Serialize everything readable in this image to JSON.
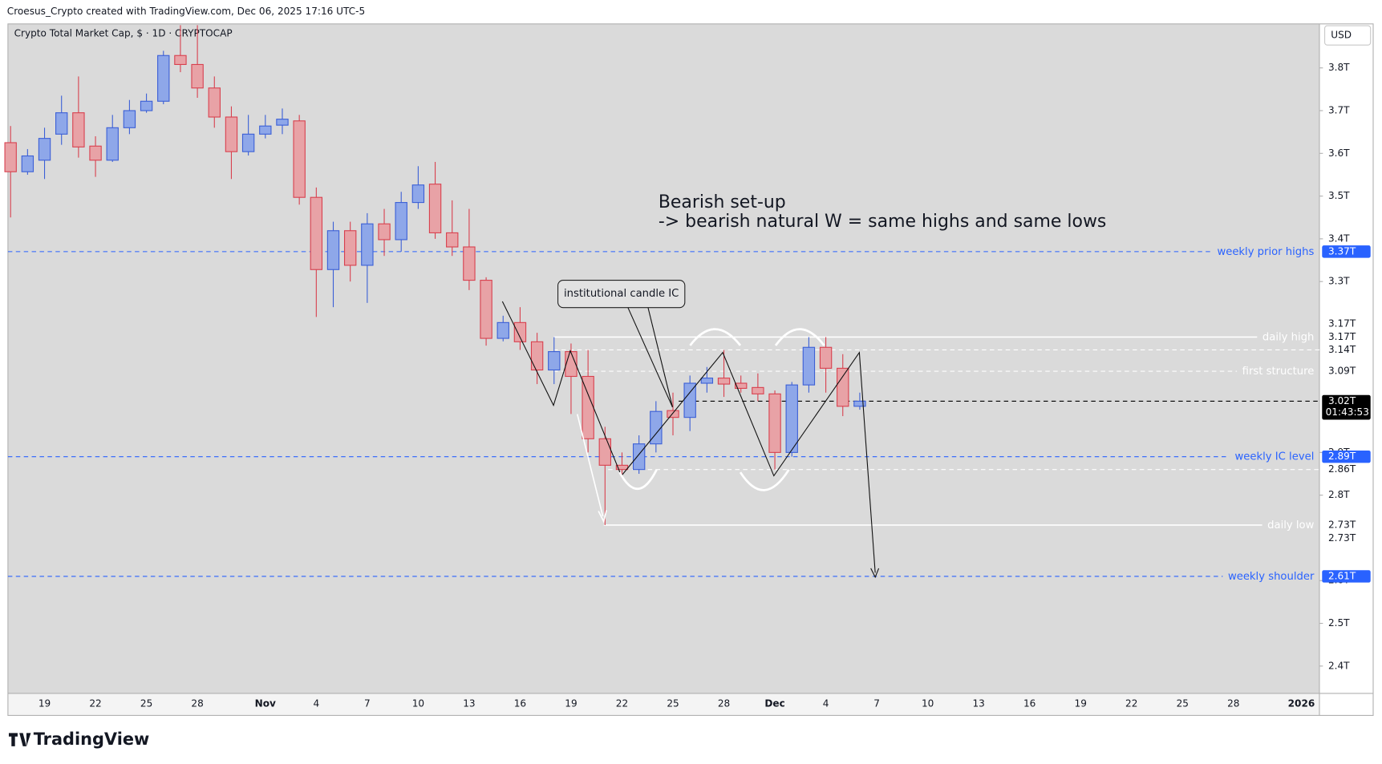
{
  "chart_data": {
    "type": "candlestick",
    "source_note": "Croesus_Crypto created with TradingView.com, Dec 06, 2025 17:16 UTC-5",
    "title": "Crypto Total Market Cap, $ · 1D · CRYPTOCAP",
    "currency": "USD",
    "logo": "TradingView",
    "annotations": [
      "Bearish set-up",
      "-> bearish natural W = same highs and same lows",
      "institutional candle IC"
    ],
    "categories": [
      null,
      null,
      "19",
      null,
      null,
      "22",
      null,
      null,
      "25",
      null,
      null,
      "28",
      null,
      null,
      null,
      "Nov",
      null,
      null,
      "4",
      null,
      null,
      "7",
      null,
      null,
      "10",
      null,
      null,
      "13",
      null,
      null,
      "16",
      null,
      null,
      "19",
      null,
      null,
      "22",
      null,
      null,
      "25",
      null,
      null,
      "28",
      null,
      null,
      "Dec",
      null,
      null,
      "4",
      null,
      null,
      "7",
      null,
      null,
      "10",
      null,
      null,
      "13",
      null,
      null,
      "16",
      null,
      null,
      "19",
      null,
      null,
      "22",
      null,
      null,
      "25",
      null,
      null,
      "28",
      null,
      null,
      null,
      "2026"
    ],
    "open": [
      3.625,
      3.557,
      3.584,
      3.645,
      3.695,
      3.617,
      3.584,
      3.66,
      3.7,
      3.722,
      3.829,
      3.808,
      3.753,
      3.685,
      3.604,
      3.645,
      3.666,
      3.676,
      3.497,
      3.328,
      3.419,
      3.338,
      3.435,
      3.398,
      3.485,
      3.528,
      3.414,
      3.381,
      3.303,
      3.167,
      3.204,
      3.159,
      3.093,
      3.136,
      3.078,
      2.932,
      2.87,
      2.86,
      2.92,
      2.998,
      2.982,
      3.062,
      3.074,
      3.062,
      3.052,
      3.037,
      2.9,
      3.058,
      3.146,
      3.097,
      3.008,
      null,
      null,
      null,
      null,
      null,
      null,
      null,
      null,
      null,
      null,
      null,
      null,
      null,
      null,
      null,
      null,
      null,
      null,
      null,
      null,
      null,
      null,
      null,
      null,
      null,
      null
    ],
    "high": [
      3.664,
      3.61,
      3.66,
      3.735,
      3.78,
      3.64,
      3.69,
      3.725,
      3.74,
      3.84,
      3.9,
      3.9,
      3.78,
      3.71,
      3.69,
      3.69,
      3.705,
      3.69,
      3.52,
      3.44,
      3.44,
      3.46,
      3.47,
      3.51,
      3.57,
      3.58,
      3.49,
      3.47,
      3.31,
      3.22,
      3.24,
      3.18,
      3.17,
      3.155,
      3.14,
      2.96,
      2.9,
      2.94,
      3.02,
      3.04,
      3.08,
      3.1,
      3.14,
      3.08,
      3.085,
      3.045,
      3.065,
      3.17,
      3.17,
      3.13,
      3.04,
      null,
      null,
      null,
      null,
      null,
      null,
      null,
      null,
      null,
      null,
      null,
      null,
      null,
      null,
      null,
      null,
      null,
      null,
      null,
      null,
      null,
      null,
      null,
      null,
      null,
      null
    ],
    "low": [
      3.45,
      3.55,
      3.54,
      3.62,
      3.59,
      3.545,
      3.58,
      3.645,
      3.695,
      3.715,
      3.79,
      3.73,
      3.66,
      3.54,
      3.595,
      3.635,
      3.645,
      3.48,
      3.217,
      3.24,
      3.3,
      3.25,
      3.36,
      3.37,
      3.47,
      3.4,
      3.36,
      3.28,
      3.15,
      3.16,
      3.14,
      3.06,
      3.06,
      2.99,
      2.9,
      2.73,
      2.84,
      2.85,
      2.9,
      2.94,
      2.95,
      3.04,
      3.03,
      3.04,
      3.02,
      2.86,
      2.89,
      3.04,
      3.04,
      2.985,
      3.0,
      null,
      null,
      null,
      null,
      null,
      null,
      null,
      null,
      null,
      null,
      null,
      null,
      null,
      null,
      null,
      null,
      null,
      null,
      null,
      null,
      null,
      null,
      null,
      null,
      null,
      null
    ],
    "close": [
      3.557,
      3.594,
      3.635,
      3.695,
      3.615,
      3.584,
      3.66,
      3.7,
      3.722,
      3.829,
      3.808,
      3.753,
      3.685,
      3.604,
      3.645,
      3.664,
      3.68,
      3.497,
      3.328,
      3.419,
      3.338,
      3.435,
      3.398,
      3.485,
      3.526,
      3.414,
      3.381,
      3.303,
      3.167,
      3.204,
      3.159,
      3.093,
      3.136,
      3.078,
      2.932,
      2.87,
      2.86,
      2.92,
      2.996,
      2.982,
      3.062,
      3.074,
      3.06,
      3.05,
      3.037,
      2.9,
      3.058,
      3.146,
      3.097,
      3.008,
      3.02,
      null,
      null,
      null,
      null,
      null,
      null,
      null,
      null,
      null,
      null,
      null,
      null,
      null,
      null,
      null,
      null,
      null,
      null,
      null,
      null,
      null,
      null,
      null,
      null,
      null,
      null
    ],
    "up_color": "#8ea7e9",
    "up_border": "#3b5fd6",
    "down_color": "#e8a2a6",
    "down_border": "#d8404e",
    "ylim": [
      2.336,
      3.903
    ],
    "yticks": [
      {
        "value": 2.4,
        "label": "2.4T"
      },
      {
        "value": 2.5,
        "label": "2.5T"
      },
      {
        "value": 2.6,
        "label": "2.6T"
      },
      {
        "value": 2.8,
        "label": "2.8T"
      },
      {
        "value": 2.9,
        "label": "2.9T"
      },
      {
        "value": 3.3,
        "label": "3.3T"
      },
      {
        "value": 3.4,
        "label": "3.4T"
      },
      {
        "value": 3.5,
        "label": "3.5T"
      },
      {
        "value": 3.6,
        "label": "3.6T"
      },
      {
        "value": 3.7,
        "label": "3.7T"
      },
      {
        "value": 3.8,
        "label": "3.8T"
      }
    ],
    "grid": false,
    "levels": [
      {
        "value": 3.37,
        "label": "3.37T",
        "text": "weekly prior highs",
        "color": "#2962ff",
        "dashed": true
      },
      {
        "value": 3.17,
        "label": "3.17T",
        "text": "daily high",
        "color": "#ffffff",
        "dashed": false
      },
      {
        "value": 3.14,
        "label": "3.14T",
        "color": "#ffffff",
        "dashed": true
      },
      {
        "value": 3.09,
        "label": "3.09T",
        "text": "first structure",
        "color": "#ffffff",
        "dashed": true
      },
      {
        "value": 3.02,
        "label": "3.02T",
        "color": "#000000",
        "dashed": true,
        "countdown": "01:43:53"
      },
      {
        "value": 2.89,
        "label": "2.89T",
        "text": "weekly IC level",
        "color": "#2962ff",
        "dashed": true
      },
      {
        "value": 2.86,
        "label": "2.86T",
        "color": "#ffffff",
        "dashed": true
      },
      {
        "value": 2.73,
        "label": "2.73T",
        "text": "daily low",
        "color": "#ffffff",
        "dashed": false
      },
      {
        "value": 2.61,
        "label": "2.61T",
        "text": "weekly shoulder",
        "color": "#2962ff",
        "dashed": true
      }
    ],
    "extra_labels": [
      {
        "value": 3.17,
        "label": "3.17T"
      },
      {
        "value": 2.73,
        "label": "2.73T"
      }
    ]
  }
}
